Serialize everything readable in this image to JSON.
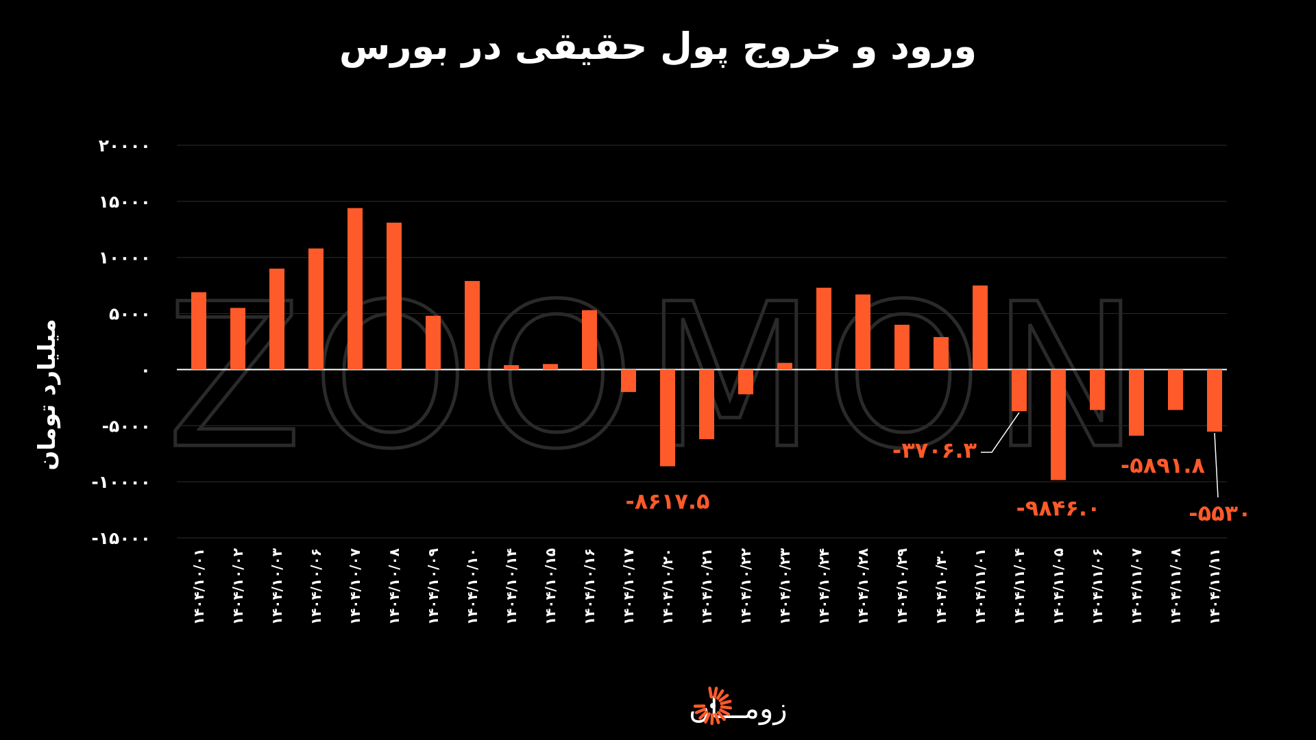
{
  "chart_data": {
    "type": "bar",
    "title": "ورود و خروج پول حقیقی در بورس",
    "ylabel": "میلیارد تومان",
    "xlabel": "",
    "ylim": [
      -15000,
      20000
    ],
    "yticks": [
      -15000,
      -10000,
      -5000,
      0,
      5000,
      10000,
      15000,
      20000
    ],
    "ytick_labels": [
      "-۱۵۰۰۰",
      "-۱۰۰۰۰",
      "-۵۰۰۰",
      "۰",
      "۵۰۰۰",
      "۱۰۰۰۰",
      "۱۵۰۰۰",
      "۲۰۰۰۰"
    ],
    "grid": true,
    "bar_color": "#ff5a2a",
    "categories": [
      "۱۴۰۴/۱۰/۰۱",
      "۱۴۰۴/۱۰/۰۲",
      "۱۴۰۴/۱۰/۰۳",
      "۱۴۰۴/۱۰/۰۶",
      "۱۴۰۴/۱۰/۰۷",
      "۱۴۰۴/۱۰/۰۸",
      "۱۴۰۴/۱۰/۰۹",
      "۱۴۰۴/۱۰/۱۰",
      "۱۴۰۴/۱۰/۱۴",
      "۱۴۰۴/۱۰/۱۵",
      "۱۴۰۴/۱۰/۱۶",
      "۱۴۰۴/۱۰/۱۷",
      "۱۴۰۴/۱۰/۲۰",
      "۱۴۰۴/۱۰/۲۱",
      "۱۴۰۴/۱۰/۲۲",
      "۱۴۰۴/۱۰/۲۳",
      "۱۴۰۴/۱۰/۲۴",
      "۱۴۰۴/۱۰/۲۸",
      "۱۴۰۴/۱۰/۲۹",
      "۱۴۰۴/۱۰/۳۰",
      "۱۴۰۴/۱۱/۰۱",
      "۱۴۰۴/۱۱/۰۴",
      "۱۴۰۴/۱۱/۰۵",
      "۱۴۰۴/۱۱/۰۶",
      "۱۴۰۴/۱۱/۰۷",
      "۱۴۰۴/۱۱/۰۸",
      "۱۴۰۴/۱۱/۱۱"
    ],
    "values": [
      6900,
      5500,
      9000,
      10800,
      14400,
      13100,
      4800,
      7900,
      400,
      500,
      5300,
      -2000,
      -8617.5,
      -6200,
      -2200,
      600,
      7300,
      6700,
      4000,
      2900,
      7500,
      -3706.3,
      -9846.0,
      -3600,
      -5891.8,
      -3600,
      -5530
    ],
    "annotations": [
      {
        "index": 12,
        "label": "-۸۶۱۷.۵"
      },
      {
        "index": 21,
        "label": "-۳۷۰۶.۳"
      },
      {
        "index": 22,
        "label": "-۹۸۴۶.۰"
      },
      {
        "index": 24,
        "label": "-۵۸۹۱.۸"
      },
      {
        "index": 26,
        "label": "-۵۵۳۰"
      }
    ]
  },
  "watermark": "ZOOMON",
  "brand": {
    "name": "زومـــان",
    "icon": "sun-logo-icon",
    "accent": "#ff5a2a"
  }
}
